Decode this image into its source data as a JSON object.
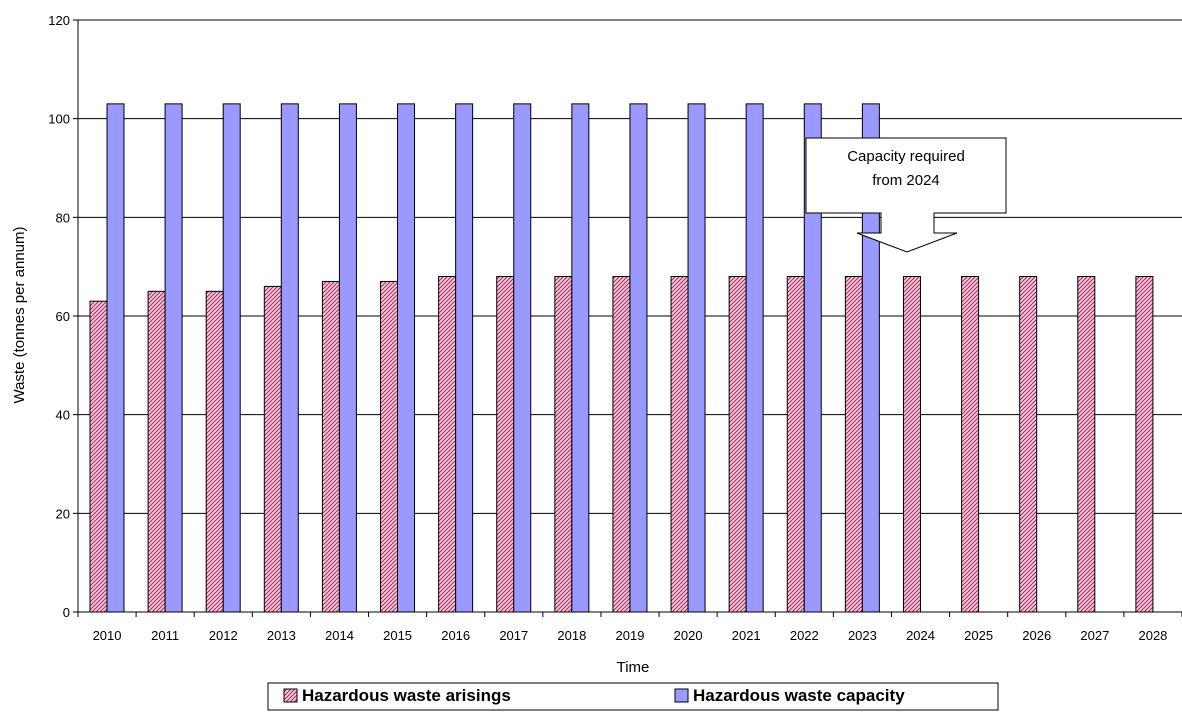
{
  "chart_data": {
    "type": "bar",
    "title": "",
    "xlabel": "Time",
    "ylabel": "Waste (tonnes per annum)",
    "ylim": [
      0,
      120
    ],
    "yticks": [
      0,
      20,
      40,
      60,
      80,
      100,
      120
    ],
    "grid": true,
    "legend_position": "bottom",
    "categories": [
      "2010",
      "2011",
      "2012",
      "2013",
      "2014",
      "2015",
      "2016",
      "2017",
      "2018",
      "2019",
      "2020",
      "2021",
      "2022",
      "2023",
      "2024",
      "2025",
      "2026",
      "2027",
      "2028"
    ],
    "series": [
      {
        "name": "Hazardous waste arisings",
        "color": "#993366",
        "fill": "hatched",
        "values": [
          63,
          65,
          65,
          66,
          67,
          67,
          68,
          68,
          68,
          68,
          68,
          68,
          68,
          68,
          68,
          68,
          68,
          68,
          68
        ]
      },
      {
        "name": "Hazardous waste capacity",
        "color": "#9999ff",
        "fill": "solid",
        "values": [
          103,
          103,
          103,
          103,
          103,
          103,
          103,
          103,
          103,
          103,
          103,
          103,
          103,
          103,
          null,
          null,
          null,
          null,
          null
        ]
      }
    ],
    "annotations": [
      {
        "text_lines": [
          "Capacity required",
          "from 2024"
        ],
        "points_to": "2024",
        "shape": "callout-arrow"
      }
    ]
  }
}
